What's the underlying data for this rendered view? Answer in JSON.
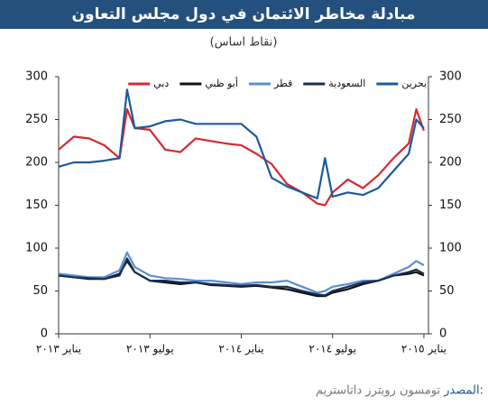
{
  "chart_data": {
    "type": "line",
    "title": "مبادلة مخاطر الائتمان في دول مجلس التعاون",
    "subtitle": "(نقاط اساس)",
    "source_label": "المصدر:",
    "source": "تومسون رويترز داتاستريم",
    "x": [
      0,
      1,
      2,
      3,
      4,
      4.5,
      5,
      6,
      7,
      8,
      9,
      10,
      11,
      12,
      13,
      14,
      15,
      16,
      17,
      17.5,
      18,
      19,
      20,
      21,
      22,
      23,
      23.5,
      24
    ],
    "xlim": [
      0,
      24.3
    ],
    "xticks": [
      {
        "value": 0,
        "label": "يناير ٢٠١٣"
      },
      {
        "value": 6,
        "label": "يوليو ٢٠١٣"
      },
      {
        "value": 12,
        "label": "يناير ٢٠١٤"
      },
      {
        "value": 18,
        "label": "يوليو ٢٠١٤"
      },
      {
        "value": 24,
        "label": "يناير ٢٠١٥"
      }
    ],
    "ylim": [
      0,
      300
    ],
    "yticks": [
      0,
      50,
      100,
      150,
      200,
      250,
      300
    ],
    "grid": false,
    "legend": "top",
    "series": [
      {
        "name": "بحرين",
        "color": "#1c5a9c",
        "values": [
          195,
          200,
          200,
          202,
          205,
          285,
          240,
          242,
          248,
          250,
          245,
          245,
          245,
          245,
          230,
          182,
          172,
          165,
          158,
          205,
          160,
          165,
          162,
          170,
          190,
          210,
          250,
          240
        ]
      },
      {
        "name": "السعودية",
        "color": "#1b2f55",
        "values": [
          68,
          66,
          65,
          64,
          68,
          88,
          72,
          62,
          62,
          60,
          60,
          58,
          57,
          56,
          57,
          55,
          55,
          50,
          46,
          45,
          50,
          55,
          60,
          62,
          68,
          72,
          75,
          70
        ]
      },
      {
        "name": "قطر",
        "color": "#5b8fd0",
        "values": [
          70,
          68,
          66,
          66,
          74,
          95,
          78,
          68,
          65,
          64,
          62,
          62,
          60,
          58,
          60,
          60,
          62,
          55,
          48,
          50,
          55,
          58,
          62,
          62,
          70,
          78,
          85,
          80
        ]
      },
      {
        "name": "أبو ظبي",
        "color": "#111111",
        "values": [
          68,
          66,
          64,
          64,
          70,
          85,
          72,
          62,
          60,
          58,
          60,
          57,
          56,
          55,
          56,
          54,
          52,
          48,
          44,
          44,
          48,
          52,
          58,
          62,
          68,
          70,
          72,
          68
        ]
      },
      {
        "name": "دبي",
        "color": "#d42a32",
        "values": [
          215,
          230,
          228,
          220,
          205,
          262,
          240,
          238,
          215,
          212,
          228,
          225,
          222,
          220,
          210,
          198,
          175,
          165,
          152,
          150,
          165,
          180,
          170,
          185,
          205,
          222,
          262,
          237
        ]
      }
    ]
  }
}
